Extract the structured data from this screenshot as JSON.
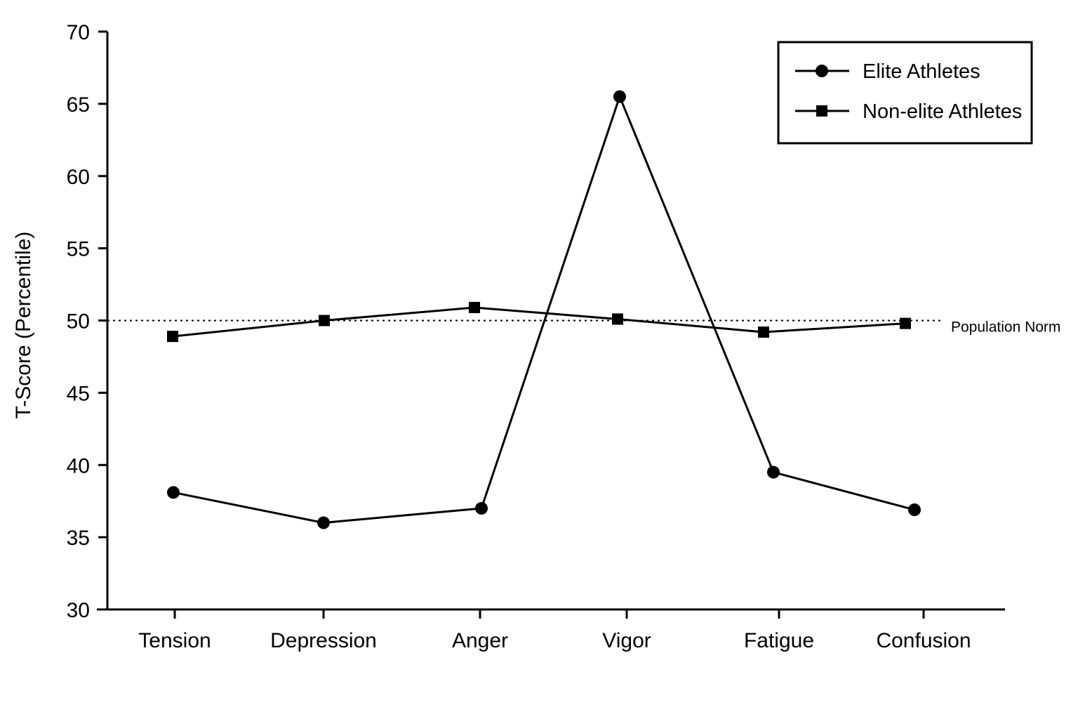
{
  "chart_data": {
    "type": "line",
    "title": "",
    "xlabel": "",
    "ylabel": "T-Score (Percentile)",
    "categories": [
      "Tension",
      "Depression",
      "Anger",
      "Vigor",
      "Fatigue",
      "Confusion"
    ],
    "ylim": [
      30,
      70
    ],
    "yticks": [
      30,
      35,
      40,
      45,
      50,
      55,
      60,
      65,
      70
    ],
    "grid": false,
    "legend_position": "top-right",
    "series": [
      {
        "name": "Elite Athletes",
        "marker": "circle",
        "values": [
          38.1,
          36.0,
          37.0,
          65.5,
          39.5,
          36.9
        ]
      },
      {
        "name": "Non-elite Athletes",
        "marker": "square",
        "values": [
          48.9,
          50.0,
          50.9,
          50.1,
          49.2,
          49.8
        ]
      }
    ],
    "reference_line": {
      "label": "Population Norm",
      "value": 50,
      "style": "dotted"
    },
    "colors": {
      "line": "#000000",
      "background": "#ffffff"
    }
  }
}
